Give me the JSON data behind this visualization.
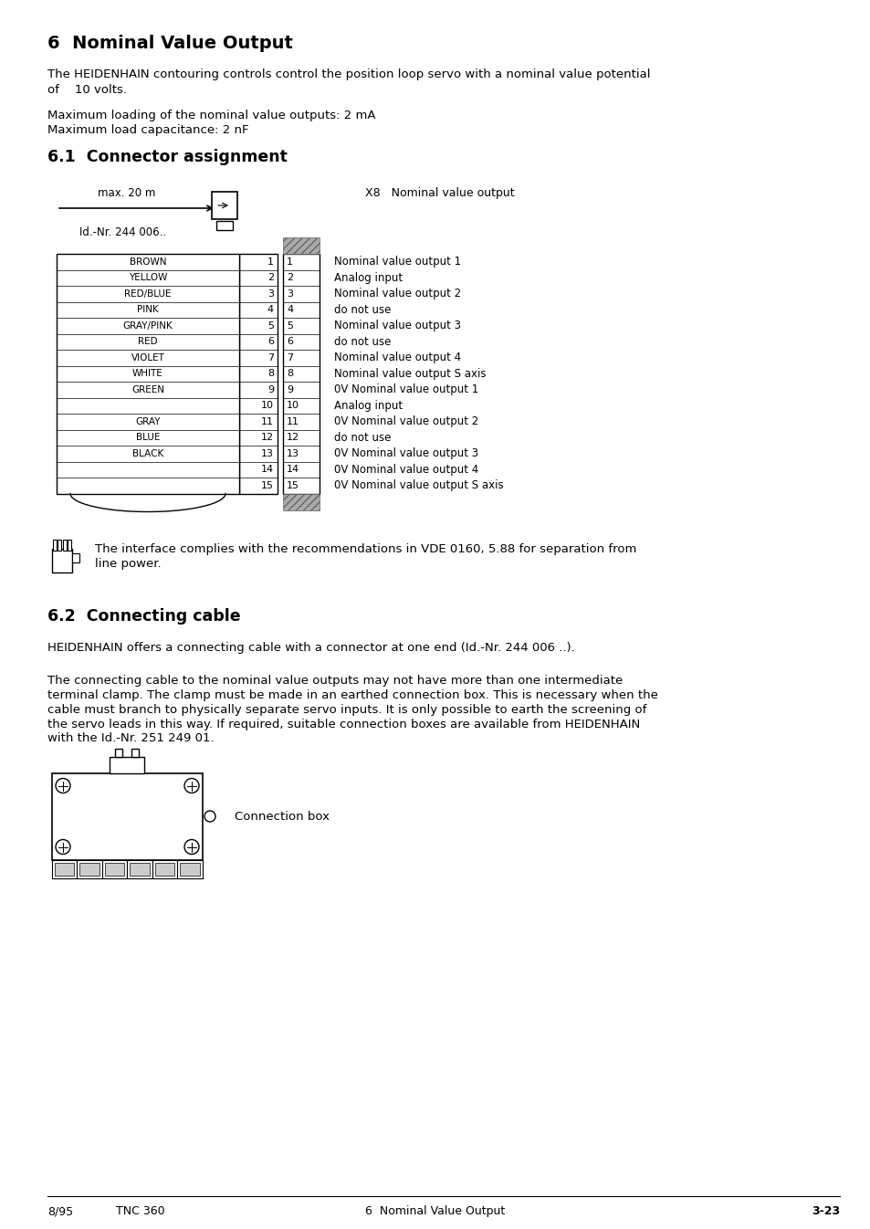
{
  "page_bg": "#ffffff",
  "title": "6  Nominal Value Output",
  "section1_title": "6.1  Connector assignment",
  "section2_title": "6.2  Connecting cable",
  "intro_text1": "The HEIDENHAIN contouring controls control the position loop servo with a nominal value potential",
  "intro_text2": "of    10 volts.",
  "max_load_text": "Maximum loading of the nominal value outputs: 2 mA",
  "max_cap_text": "Maximum load capacitance: 2 nF",
  "connector_label": "X8   Nominal value output",
  "cable_label": "max. 20 m",
  "id_label": "Id.-Nr. 244 006..",
  "wire_labels": [
    "BROWN",
    "YELLOW",
    "RED/BLUE",
    "PINK",
    "GRAY/PINK",
    "RED",
    "VIOLET",
    "WHITE",
    "GREEN",
    "",
    "GRAY",
    "BLUE",
    "BLACK"
  ],
  "wire_row_indices": [
    0,
    1,
    2,
    3,
    4,
    5,
    6,
    7,
    8,
    -1,
    10,
    11,
    12
  ],
  "pin_numbers": [
    1,
    2,
    3,
    4,
    5,
    6,
    7,
    8,
    9,
    10,
    11,
    12,
    13,
    14,
    15
  ],
  "pin_descriptions": [
    "Nominal value output 1",
    "Analog input",
    "Nominal value output 2",
    "do not use",
    "Nominal value output 3",
    "do not use",
    "Nominal value output 4",
    "Nominal value output S axis",
    "0V Nominal value output 1",
    "Analog input",
    "0V Nominal value output 2",
    "do not use",
    "0V Nominal value output 3",
    "0V Nominal value output 4",
    "0V Nominal value output S axis"
  ],
  "note_text1": "The interface complies with the recommendations in VDE 0160, 5.88 for separation from",
  "note_text2": "line power.",
  "cable_section1": "HEIDENHAIN offers a connecting cable with a connector at one end (Id.-Nr. 244 006 ..).",
  "cable_section2_lines": [
    "The connecting cable to the nominal value outputs may not have more than one intermediate",
    "terminal clamp. The clamp must be made in an earthed connection box. This is necessary when the",
    "cable must branch to physically separate servo inputs. It is only possible to earth the screening of",
    "the servo leads in this way. If required, suitable connection boxes are available from HEIDENHAIN",
    "with the Id.-Nr. 251 249 01."
  ],
  "connection_box_label": "Connection box",
  "footer_left": "8/95",
  "footer_mid_left": "TNC 360",
  "footer_mid": "6  Nominal Value Output",
  "footer_right": "3-23"
}
